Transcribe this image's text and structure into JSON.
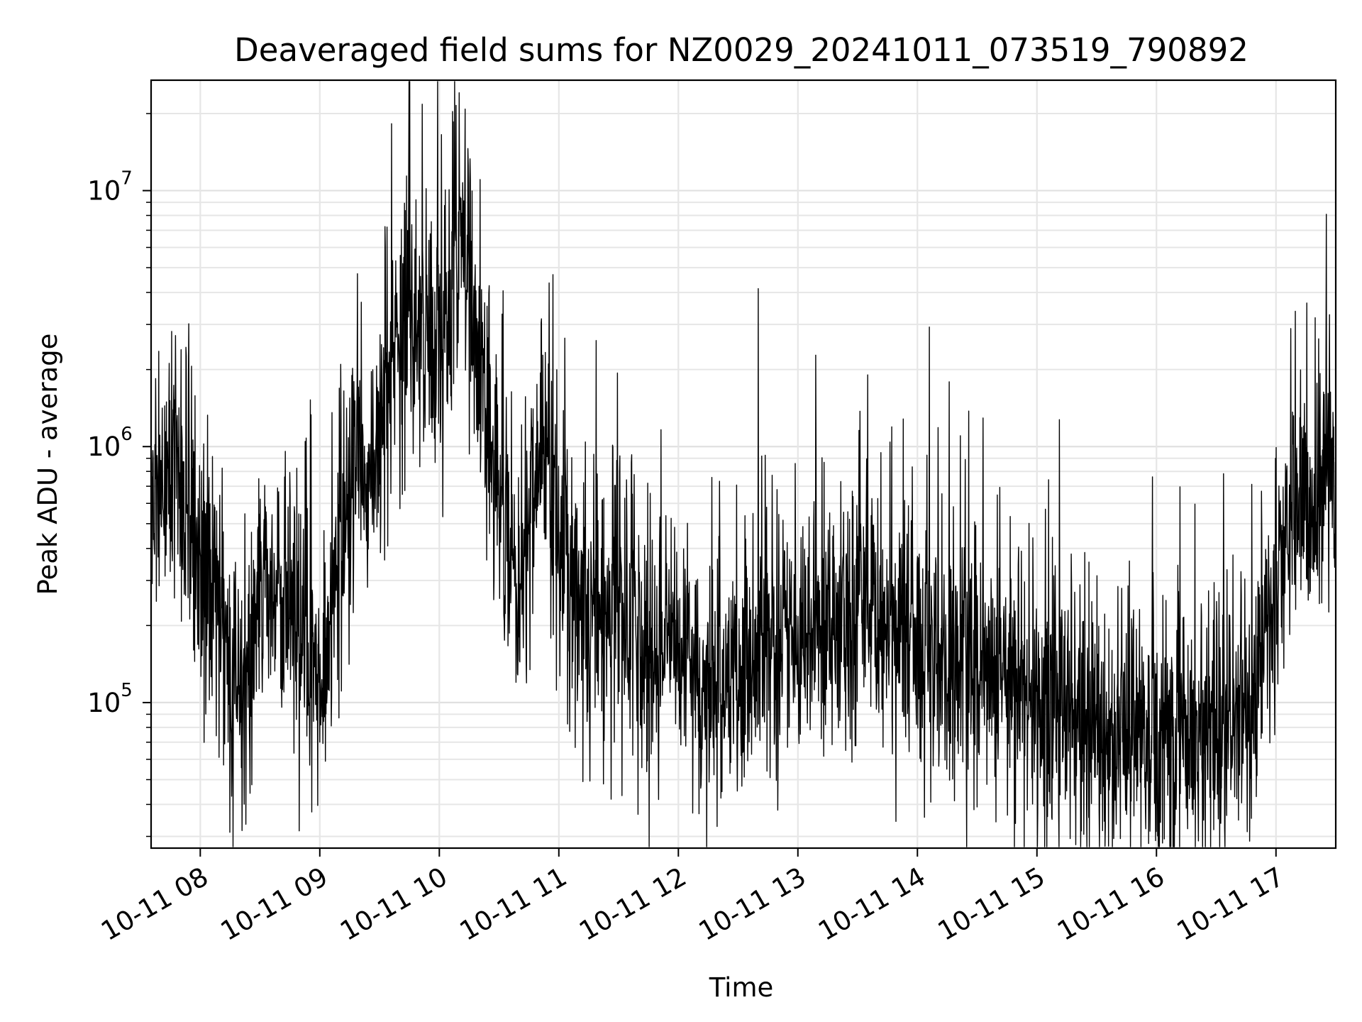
{
  "chart_data": {
    "type": "line",
    "title": "Deaveraged field sums for NZ0029_20241011_073519_790892",
    "xlabel": "Time",
    "ylabel": "Peak ADU - average",
    "yscale": "log",
    "xlim": [
      "2024-10-11T07:35:19",
      "2024-10-11T17:30:00"
    ],
    "ylim": [
      27000,
      27000000
    ],
    "grid": true,
    "line_color": "#000000",
    "x_ticks": [
      "10-11 08",
      "10-11 09",
      "10-11 10",
      "10-11 11",
      "10-11 12",
      "10-11 13",
      "10-11 14",
      "10-11 15",
      "10-11 16",
      "10-11 17"
    ],
    "y_ticks": [
      {
        "value": 100000,
        "base": "10",
        "exp": "5"
      },
      {
        "value": 1000000,
        "base": "10",
        "exp": "6"
      },
      {
        "value": 10000000,
        "base": "10",
        "exp": "7"
      }
    ],
    "series": [
      {
        "x": [
          "2024-10-11T07:35:19",
          "2024-10-11T07:40",
          "2024-10-11T07:45",
          "2024-10-11T07:48",
          "2024-10-11T07:50",
          "2024-10-11T07:55",
          "2024-10-11T08:00",
          "2024-10-11T08:05",
          "2024-10-11T08:10",
          "2024-10-11T08:15",
          "2024-10-11T08:20",
          "2024-10-11T08:25",
          "2024-10-11T08:30",
          "2024-10-11T08:35",
          "2024-10-11T08:40",
          "2024-10-11T08:45",
          "2024-10-11T08:50",
          "2024-10-11T08:55",
          "2024-10-11T09:00",
          "2024-10-11T09:05",
          "2024-10-11T09:10",
          "2024-10-11T09:15",
          "2024-10-11T09:20",
          "2024-10-11T09:25",
          "2024-10-11T09:30",
          "2024-10-11T09:35",
          "2024-10-11T09:40",
          "2024-10-11T09:45",
          "2024-10-11T09:50",
          "2024-10-11T09:55",
          "2024-10-11T10:00",
          "2024-10-11T10:05",
          "2024-10-11T10:08",
          "2024-10-11T10:10",
          "2024-10-11T10:15",
          "2024-10-11T10:20",
          "2024-10-11T10:25",
          "2024-10-11T10:30",
          "2024-10-11T10:35",
          "2024-10-11T10:40",
          "2024-10-11T10:45",
          "2024-10-11T10:50",
          "2024-10-11T10:55",
          "2024-10-11T11:00",
          "2024-10-11T11:10",
          "2024-10-11T11:20",
          "2024-10-11T11:30",
          "2024-10-11T11:40",
          "2024-10-11T11:50",
          "2024-10-11T12:00",
          "2024-10-11T12:15",
          "2024-10-11T12:30",
          "2024-10-11T12:45",
          "2024-10-11T13:00",
          "2024-10-11T13:15",
          "2024-10-11T13:30",
          "2024-10-11T13:45",
          "2024-10-11T14:00",
          "2024-10-11T14:15",
          "2024-10-11T14:30",
          "2024-10-11T14:45",
          "2024-10-11T15:00",
          "2024-10-11T15:15",
          "2024-10-11T15:30",
          "2024-10-11T15:45",
          "2024-10-11T16:00",
          "2024-10-11T16:15",
          "2024-10-11T16:30",
          "2024-10-11T16:45",
          "2024-10-11T16:52",
          "2024-10-11T16:55",
          "2024-10-11T17:00",
          "2024-10-11T17:05",
          "2024-10-11T17:08",
          "2024-10-11T17:10",
          "2024-10-11T17:15",
          "2024-10-11T17:20",
          "2024-10-11T17:25",
          "2024-10-11T17:30"
        ],
        "y": [
          600000,
          700000,
          800000,
          900000,
          700000,
          600000,
          350000,
          250000,
          180000,
          150000,
          120000,
          130000,
          200000,
          250000,
          280000,
          250000,
          200000,
          150000,
          120000,
          180000,
          400000,
          600000,
          700000,
          800000,
          1200000,
          1800000,
          2500000,
          3000000,
          2800000,
          2500000,
          2000000,
          3500000,
          5000000,
          6000000,
          4000000,
          2000000,
          1200000,
          800000,
          400000,
          250000,
          400000,
          1000000,
          800000,
          350000,
          250000,
          220000,
          200000,
          180000,
          160000,
          150000,
          140000,
          130000,
          160000,
          200000,
          220000,
          250000,
          200000,
          180000,
          150000,
          130000,
          120000,
          100000,
          90000,
          80000,
          75000,
          70000,
          75000,
          80000,
          90000,
          120000,
          180000,
          300000,
          500000,
          700000,
          600000,
          550000,
          600000,
          700000,
          800000
        ]
      }
    ]
  }
}
